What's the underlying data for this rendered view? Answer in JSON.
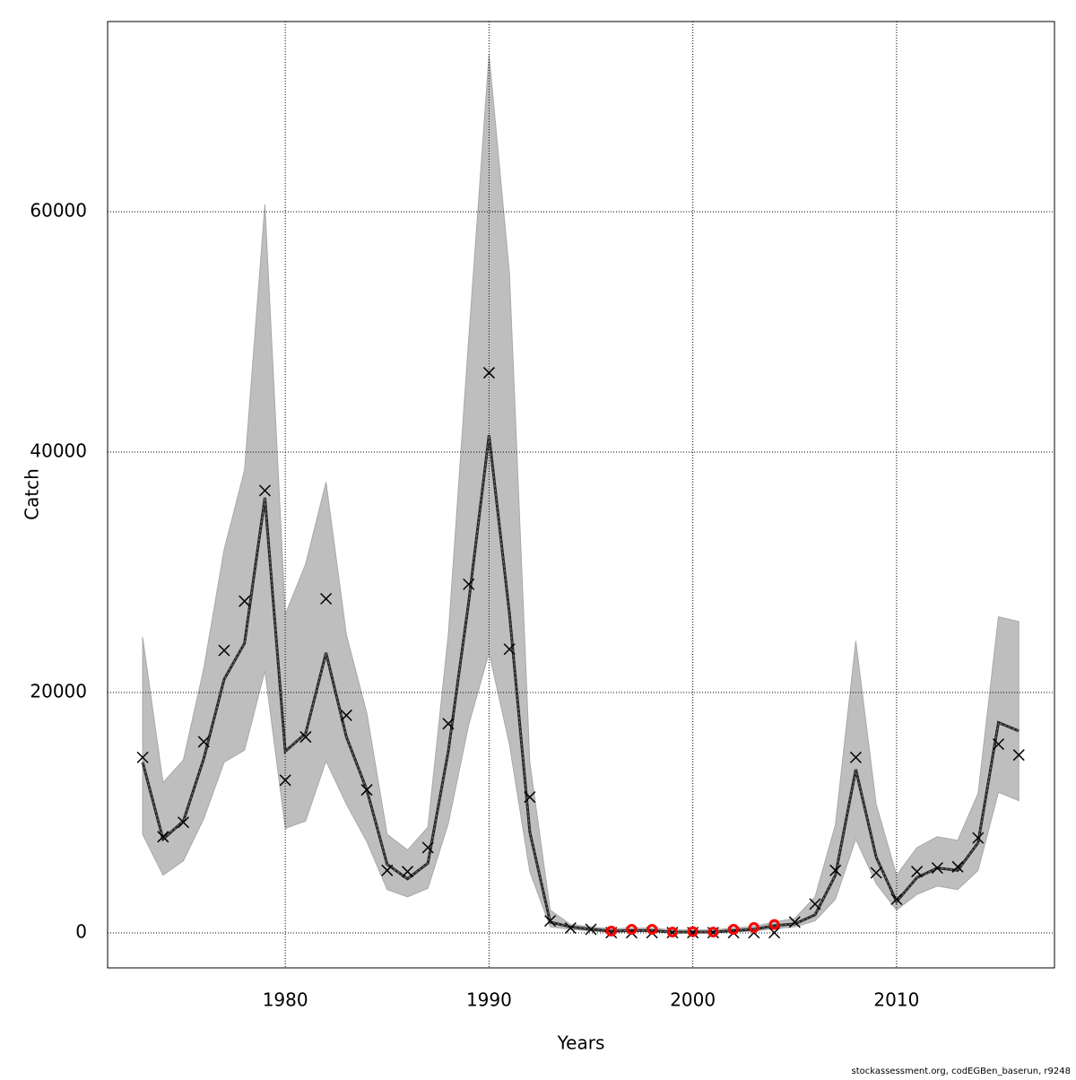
{
  "chart_data": {
    "type": "line",
    "xlabel": "Years",
    "ylabel": "Catch",
    "footnote": "stockassessment.org, codEGBen_baserun, r9248",
    "grid": true,
    "xlim": [
      1971.28,
      2017.75
    ],
    "ylim": [
      -2910,
      75820
    ],
    "xticks": [
      1980,
      1990,
      2000,
      2010
    ],
    "yticks": [
      0,
      20000,
      40000,
      60000
    ],
    "x": [
      1973,
      1974,
      1975,
      1976,
      1977,
      1978,
      1979,
      1980,
      1981,
      1982,
      1983,
      1984,
      1985,
      1986,
      1987,
      1988,
      1989,
      1990,
      1991,
      1992,
      1993,
      1994,
      1995,
      1996,
      1997,
      1998,
      1999,
      2000,
      2001,
      2002,
      2003,
      2004,
      2005,
      2006,
      2007,
      2008,
      2009,
      2010,
      2011,
      2012,
      2013,
      2014,
      2015,
      2016
    ],
    "series": [
      {
        "kind": "band_upper",
        "color": "#bebebe",
        "values": [
          24600,
          12500,
          14400,
          22000,
          31900,
          38500,
          60600,
          26500,
          30700,
          37500,
          24800,
          18300,
          8200,
          6900,
          8800,
          24800,
          49400,
          73100,
          54900,
          14200,
          1900,
          700,
          500,
          350,
          400,
          400,
          250,
          250,
          250,
          400,
          550,
          900,
          1200,
          3000,
          9000,
          24300,
          10700,
          4800,
          7100,
          8000,
          7700,
          11600,
          26300,
          25900
        ]
      },
      {
        "kind": "band_lower",
        "color": "#bebebe",
        "values": [
          8200,
          4800,
          6000,
          9500,
          14200,
          15200,
          21800,
          8700,
          9300,
          14300,
          10700,
          7600,
          3600,
          3000,
          3700,
          9100,
          17300,
          23300,
          15700,
          5100,
          500,
          300,
          150,
          60,
          100,
          100,
          20,
          20,
          20,
          80,
          150,
          350,
          500,
          1000,
          2800,
          7800,
          4100,
          1900,
          3200,
          3900,
          3600,
          5200,
          11700,
          11000
        ]
      },
      {
        "kind": "line",
        "color": "#222222",
        "values": [
          14200,
          7800,
          9300,
          14500,
          21100,
          24100,
          36200,
          15100,
          16600,
          23300,
          16300,
          11900,
          5700,
          4500,
          5800,
          15100,
          27500,
          41400,
          26600,
          8400,
          900,
          500,
          300,
          150,
          200,
          200,
          70,
          70,
          70,
          200,
          300,
          600,
          750,
          1500,
          4800,
          13600,
          6300,
          2600,
          4600,
          5400,
          5200,
          7500,
          17500,
          16800
        ]
      },
      {
        "kind": "cross",
        "color": "#000000",
        "values": [
          14600,
          8000,
          9200,
          15900,
          23500,
          27600,
          36800,
          12700,
          16300,
          27800,
          18100,
          11900,
          5200,
          5100,
          7100,
          17400,
          29000,
          46600,
          23600,
          11300,
          1000,
          400,
          300,
          20,
          20,
          20,
          20,
          20,
          20,
          20,
          20,
          20,
          900,
          2400,
          5200,
          14600,
          5000,
          2800,
          5100,
          5400,
          5500,
          7900,
          15700,
          14800
        ]
      },
      {
        "kind": "circle",
        "color": "#ff0000",
        "values": [
          null,
          null,
          null,
          null,
          null,
          null,
          null,
          null,
          null,
          null,
          null,
          null,
          null,
          null,
          null,
          null,
          null,
          null,
          null,
          null,
          null,
          null,
          null,
          150,
          300,
          300,
          70,
          100,
          70,
          300,
          450,
          700,
          null,
          null,
          null,
          null,
          null,
          null,
          null,
          null,
          null,
          null,
          null,
          null
        ]
      }
    ]
  }
}
